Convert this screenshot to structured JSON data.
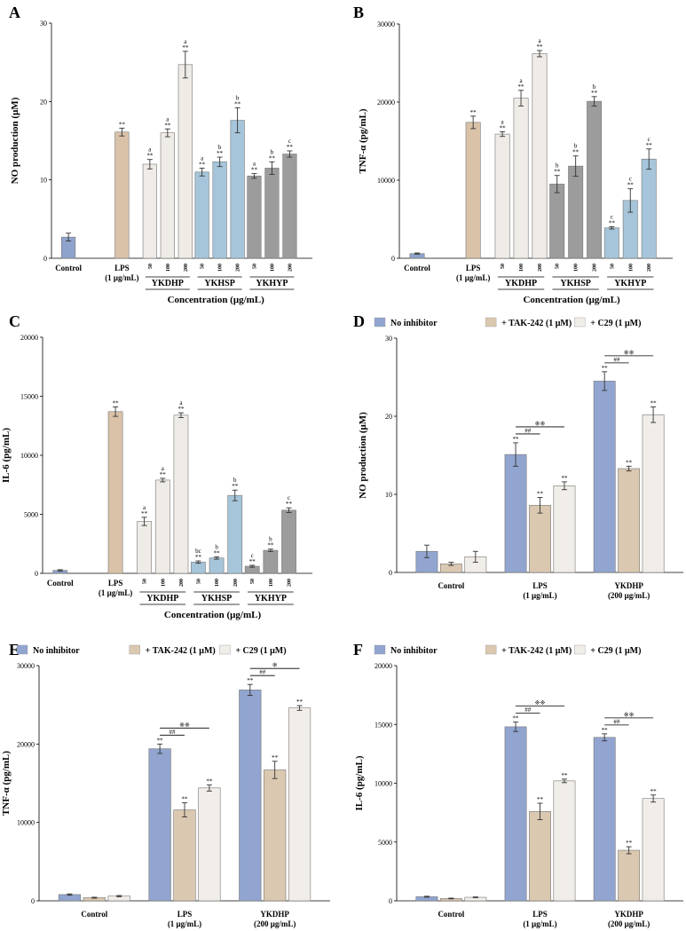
{
  "colors": {
    "control": "#8ea3cc",
    "lps": "#d9c2a8",
    "ykdhp": "#efebe6",
    "ykhsp": "#a6c5da",
    "ykhyp": "#9c9c9c",
    "no_inhibitor": "#91a5d0",
    "tak242": "#dbc8b0",
    "c29": "#f1ede8"
  },
  "chart_data": [
    {
      "id": "A",
      "panel": "A",
      "type": "bar",
      "ylabel": "NO production (μM)",
      "xlabel": "Concentration (μg/mL)",
      "ylim": [
        0,
        30
      ],
      "yticks": [
        "0",
        "10",
        "20",
        "30"
      ],
      "categories": [
        "Control",
        "LPS",
        "YKDHP",
        "YKHSP",
        "YKHYP"
      ],
      "category_labels": [
        [
          "Control"
        ],
        [
          "LPS",
          "(1 μg/mL)"
        ]
      ],
      "group_labels": [
        "YKDHP",
        "YKHSP",
        "YKHYP"
      ],
      "conc_labels": [
        "50",
        "100",
        "200"
      ],
      "bars": [
        {
          "value": 2.7,
          "err": 0.5,
          "color": "control",
          "slot": 0
        },
        {
          "value": 16.1,
          "err": 0.5,
          "color": "lps",
          "slot": 1,
          "sig": "**"
        },
        {
          "value": 12.0,
          "err": 0.6,
          "color": "ykdhp",
          "slot": 2,
          "sig": "**",
          "letter": "a"
        },
        {
          "value": 16.0,
          "err": 0.5,
          "color": "ykdhp",
          "slot": 3,
          "sig": "**",
          "letter": "a"
        },
        {
          "value": 24.7,
          "err": 1.7,
          "color": "ykdhp",
          "slot": 4,
          "sig": "**",
          "letter": "a"
        },
        {
          "value": 11.0,
          "err": 0.5,
          "color": "ykhsp",
          "slot": 5,
          "sig": "**",
          "letter": "a"
        },
        {
          "value": 12.3,
          "err": 0.6,
          "color": "ykhsp",
          "slot": 6,
          "sig": "**",
          "letter": "b"
        },
        {
          "value": 17.6,
          "err": 1.6,
          "color": "ykhsp",
          "slot": 7,
          "sig": "**",
          "letter": "b"
        },
        {
          "value": 10.5,
          "err": 0.3,
          "color": "ykhyp",
          "slot": 8,
          "sig": "**",
          "letter": "a"
        },
        {
          "value": 11.5,
          "err": 0.8,
          "color": "ykhyp",
          "slot": 9,
          "sig": "**",
          "letter": "b"
        },
        {
          "value": 13.3,
          "err": 0.4,
          "color": "ykhyp",
          "slot": 10,
          "sig": "**",
          "letter": "c"
        }
      ]
    },
    {
      "id": "B",
      "panel": "B",
      "type": "bar",
      "ylabel": "TNF-α (pg/mL)",
      "xlabel": "Concentration (μg/mL)",
      "ylim": [
        0,
        30000
      ],
      "yticks": [
        "0",
        "10000",
        "20000",
        "30000"
      ],
      "categories": [
        "Control",
        "LPS",
        "YKDHP",
        "YKHSP",
        "YKHYP"
      ],
      "category_labels": [
        [
          "Control"
        ],
        [
          "LPS",
          "(1 μg/mL)"
        ]
      ],
      "group_labels": [
        "YKDHP",
        "YKHSP",
        "YKHYP"
      ],
      "conc_labels": [
        "50",
        "100",
        "200"
      ],
      "bars": [
        {
          "value": 600,
          "err": 80,
          "color": "control",
          "slot": 0
        },
        {
          "value": 17400,
          "err": 800,
          "color": "lps",
          "slot": 1,
          "sig": "**"
        },
        {
          "value": 15900,
          "err": 300,
          "color": "ykdhp",
          "slot": 2,
          "sig": "**",
          "letter": "a"
        },
        {
          "value": 20500,
          "err": 1000,
          "color": "ykdhp",
          "slot": 3,
          "sig": "**",
          "letter": "a"
        },
        {
          "value": 26200,
          "err": 400,
          "color": "ykdhp",
          "slot": 4,
          "sig": "**",
          "letter": "a"
        },
        {
          "value": 9500,
          "err": 1100,
          "color": "ykhyp",
          "slot": 5,
          "sig": "**",
          "letter": "b"
        },
        {
          "value": 11800,
          "err": 1300,
          "color": "ykhyp",
          "slot": 6,
          "sig": "**",
          "letter": "b"
        },
        {
          "value": 20100,
          "err": 600,
          "color": "ykhyp",
          "slot": 7,
          "sig": "**",
          "letter": "b"
        },
        {
          "value": 3900,
          "err": 150,
          "color": "ykhsp",
          "slot": 8,
          "sig": "**",
          "letter": "c"
        },
        {
          "value": 7400,
          "err": 1500,
          "color": "ykhsp",
          "slot": 9,
          "sig": "**",
          "letter": "c"
        },
        {
          "value": 12700,
          "err": 1300,
          "color": "ykhsp",
          "slot": 10,
          "sig": "**",
          "letter": "c"
        }
      ]
    },
    {
      "id": "C",
      "panel": "C",
      "type": "bar",
      "ylabel": "IL-6 (pg/mL)",
      "xlabel": "Concentration (μg/mL)",
      "ylim": [
        0,
        20000
      ],
      "yticks": [
        "0",
        "5000",
        "10000",
        "15000",
        "20000"
      ],
      "categories": [
        "Control",
        "LPS",
        "YKDHP",
        "YKHSP",
        "YKHYP"
      ],
      "category_labels": [
        [
          "Control"
        ],
        [
          "LPS",
          "(1 μg/mL)"
        ]
      ],
      "group_labels": [
        "YKDHP",
        "YKHSP",
        "YKHYP"
      ],
      "conc_labels": [
        "50",
        "100",
        "200"
      ],
      "bars": [
        {
          "value": 250,
          "err": 60,
          "color": "control",
          "slot": 0
        },
        {
          "value": 13700,
          "err": 400,
          "color": "lps",
          "slot": 1,
          "sig": "**"
        },
        {
          "value": 4400,
          "err": 350,
          "color": "ykdhp",
          "slot": 2,
          "sig": "**",
          "letter": "a"
        },
        {
          "value": 7900,
          "err": 150,
          "color": "ykdhp",
          "slot": 3,
          "sig": "**",
          "letter": "a"
        },
        {
          "value": 13400,
          "err": 200,
          "color": "ykdhp",
          "slot": 4,
          "sig": "**",
          "letter": "a"
        },
        {
          "value": 950,
          "err": 100,
          "color": "ykhsp",
          "slot": 5,
          "sig": "**",
          "letter": "bc"
        },
        {
          "value": 1300,
          "err": 100,
          "color": "ykhsp",
          "slot": 6,
          "sig": "**",
          "letter": "b"
        },
        {
          "value": 6600,
          "err": 450,
          "color": "ykhsp",
          "slot": 7,
          "sig": "**",
          "letter": "b"
        },
        {
          "value": 600,
          "err": 80,
          "color": "ykhyp",
          "slot": 8,
          "sig": "**",
          "letter": "c"
        },
        {
          "value": 1950,
          "err": 100,
          "color": "ykhyp",
          "slot": 9,
          "sig": "**",
          "letter": "b"
        },
        {
          "value": 5350,
          "err": 200,
          "color": "ykhyp",
          "slot": 10,
          "sig": "**",
          "letter": "c"
        }
      ]
    },
    {
      "id": "D",
      "panel": "D",
      "type": "bar",
      "ylabel": "NO production (μM)",
      "ylim": [
        0,
        30
      ],
      "yticks": [
        "0",
        "10",
        "20",
        "30"
      ],
      "legend": [
        "No inhibitor",
        "+ TAK-242 (1 μM)",
        "+ C29 (1 μM)"
      ],
      "categories": [
        [
          "Control"
        ],
        [
          "LPS",
          "(1 μg/mL)"
        ],
        [
          "YKDHP",
          "(200 μg/mL)"
        ]
      ],
      "series": [
        {
          "name": "No inhibitor",
          "values": [
            2.7,
            15.1,
            24.5
          ],
          "err": [
            0.8,
            1.5,
            1.2
          ],
          "sig": [
            "",
            "**",
            "**"
          ]
        },
        {
          "name": "+ TAK-242 (1 μM)",
          "values": [
            1.1,
            8.6,
            13.3
          ],
          "err": [
            0.2,
            1.0,
            0.3
          ],
          "sig": [
            "",
            "**",
            "**"
          ]
        },
        {
          "name": "+ C29 (1 μM)",
          "values": [
            2.0,
            11.1,
            20.2
          ],
          "err": [
            0.7,
            0.5,
            1.0
          ],
          "sig": [
            "",
            "**",
            "**"
          ]
        }
      ],
      "brackets": [
        {
          "group": 1,
          "label": "##",
          "to": 1
        },
        {
          "group": 1,
          "label": "※※",
          "to": 2
        },
        {
          "group": 2,
          "label": "##",
          "to": 1
        },
        {
          "group": 2,
          "label": "※※",
          "to": 2
        }
      ]
    },
    {
      "id": "E",
      "panel": "E",
      "type": "bar",
      "ylabel": "TNF-α (pg/mL)",
      "ylim": [
        0,
        30000
      ],
      "yticks": [
        "0",
        "10000",
        "20000",
        "30000"
      ],
      "legend": [
        "No inhibitor",
        "+ TAK-242 (1 μM)",
        "+ C29 (1 μM)"
      ],
      "categories": [
        [
          "Control"
        ],
        [
          "LPS",
          "(1 μg/mL)"
        ],
        [
          "YKDHP",
          "(200 μg/mL)"
        ]
      ],
      "series": [
        {
          "name": "No inhibitor",
          "values": [
            800,
            19400,
            26900
          ],
          "err": [
            80,
            600,
            700
          ],
          "sig": [
            "",
            "**",
            "**"
          ]
        },
        {
          "name": "+ TAK-242 (1 μM)",
          "values": [
            400,
            11600,
            16700
          ],
          "err": [
            60,
            900,
            1100
          ],
          "sig": [
            "",
            "**",
            "**"
          ]
        },
        {
          "name": "+ C29 (1 μM)",
          "values": [
            600,
            14400,
            24600
          ],
          "err": [
            80,
            400,
            300
          ],
          "sig": [
            "",
            "**",
            "**"
          ]
        }
      ],
      "brackets": [
        {
          "group": 1,
          "label": "##",
          "to": 1
        },
        {
          "group": 1,
          "label": "※※",
          "to": 2
        },
        {
          "group": 2,
          "label": "##",
          "to": 1
        },
        {
          "group": 2,
          "label": "※",
          "to": 2
        }
      ]
    },
    {
      "id": "F",
      "panel": "F",
      "type": "bar",
      "ylabel": "IL-6 (pg/mL)",
      "ylim": [
        0,
        20000
      ],
      "yticks": [
        "0",
        "5000",
        "10000",
        "15000",
        "20000"
      ],
      "legend": [
        "No inhibitor",
        "+ TAK-242 (1 μM)",
        "+ C29 (1 μM)"
      ],
      "categories": [
        [
          "Control"
        ],
        [
          "LPS",
          "(1 μg/mL)"
        ],
        [
          "YKDHP",
          "(200 μg/mL)"
        ]
      ],
      "series": [
        {
          "name": "No inhibitor",
          "values": [
            350,
            14800,
            13900
          ],
          "err": [
            40,
            400,
            300
          ],
          "sig": [
            "",
            "**",
            "**"
          ]
        },
        {
          "name": "+ TAK-242 (1 μM)",
          "values": [
            200,
            7600,
            4300
          ],
          "err": [
            30,
            700,
            300
          ],
          "sig": [
            "",
            "**",
            "**"
          ]
        },
        {
          "name": "+ C29 (1 μM)",
          "values": [
            300,
            10200,
            8700
          ],
          "err": [
            30,
            150,
            300
          ],
          "sig": [
            "",
            "**",
            "**"
          ]
        }
      ],
      "brackets": [
        {
          "group": 1,
          "label": "##",
          "to": 1
        },
        {
          "group": 1,
          "label": "※※",
          "to": 2
        },
        {
          "group": 2,
          "label": "##",
          "to": 1
        },
        {
          "group": 2,
          "label": "※※",
          "to": 2
        }
      ]
    }
  ]
}
